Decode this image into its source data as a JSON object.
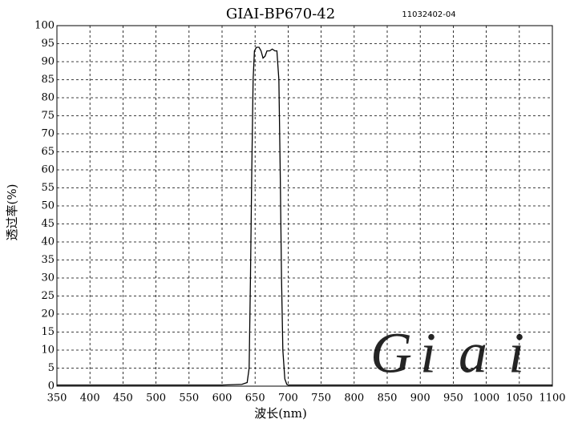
{
  "chart_data": {
    "type": "line",
    "title": "GIAI-BP670-42",
    "subtitle": "11032402-04",
    "x_label": "波长(nm)",
    "y_label": "透过率(%)",
    "watermark": [
      "G",
      "i",
      "a",
      "i"
    ],
    "x": [
      350,
      400,
      500,
      600,
      630,
      638,
      641,
      643,
      645,
      647,
      649,
      652,
      656,
      659,
      662,
      665,
      668,
      672,
      676,
      680,
      683,
      686,
      688,
      690,
      692,
      695,
      698,
      700,
      800,
      900,
      1000,
      1100
    ],
    "series": [
      {
        "name": "GIAI-BP670-42",
        "color": "#000000",
        "values": [
          0.3,
          0.3,
          0.3,
          0.3,
          0.5,
          1,
          5,
          30,
          60,
          85,
          93,
          94,
          94,
          93,
          91,
          91.5,
          93,
          93,
          93.5,
          93,
          93,
          85,
          60,
          30,
          10,
          2,
          0.5,
          0.3,
          0.3,
          0.3,
          0.3,
          0.3
        ]
      }
    ],
    "xlim": [
      350,
      1100
    ],
    "ylim": [
      0,
      100
    ],
    "xticks": [
      350,
      400,
      450,
      500,
      550,
      600,
      650,
      700,
      750,
      800,
      850,
      900,
      950,
      1000,
      1050,
      1100
    ],
    "yticks": [
      0,
      5,
      10,
      15,
      20,
      25,
      30,
      35,
      40,
      45,
      50,
      55,
      60,
      65,
      70,
      75,
      80,
      85,
      90,
      95,
      100
    ],
    "grid": true
  }
}
